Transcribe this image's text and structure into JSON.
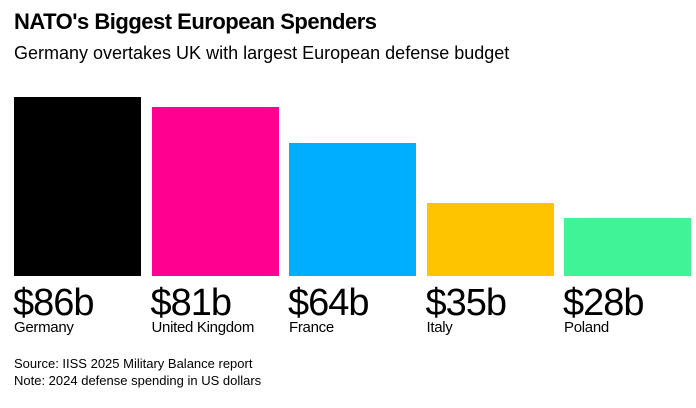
{
  "chart_data": {
    "type": "bar",
    "title": "NATO's Biggest European Spenders",
    "subtitle": "Germany overtakes UK with largest European defense budget",
    "categories": [
      "Germany",
      "United Kingdom",
      "France",
      "Italy",
      "Poland"
    ],
    "values": [
      86,
      81,
      64,
      35,
      28
    ],
    "value_labels": [
      "$86b",
      "$81b",
      "$64b",
      "$35b",
      "$28b"
    ],
    "colors": [
      "#000000",
      "#ff0090",
      "#00aeff",
      "#ffc400",
      "#40f396"
    ],
    "unit": "billion US dollars",
    "ylim": [
      0,
      86
    ],
    "grid": false,
    "legend": "none",
    "source": "Source: IISS 2025 Military Balance report",
    "note": "Note: 2024 defense spending in US dollars"
  }
}
